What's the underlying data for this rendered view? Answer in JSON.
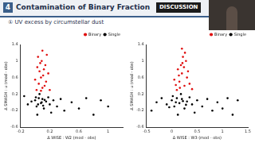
{
  "slide": {
    "number": "4",
    "title": "Contamination of Binary Fraction",
    "section": "DISCUSSION",
    "subtitle": "① UV excess by circumstellar dust"
  },
  "chart_data": [
    {
      "type": "scatter",
      "x_label": "Δ WISE : W2 (mod - obs)",
      "y_label": "Δ SMASH : u (mod - obs)",
      "xlim": [
        -0.2,
        1.2
      ],
      "xticks": [
        -0.2,
        0.2,
        0.6,
        1.0
      ],
      "ylim": [
        -0.6,
        1.4
      ],
      "yticks": [
        -0.6,
        -0.2,
        0.2,
        0.6,
        1.0,
        1.4
      ],
      "grid": false,
      "legend": "upper right",
      "marker": "circle",
      "series": [
        {
          "name": "Binary",
          "color": "#e01010",
          "values": [
            [
              0.02,
              0.3
            ],
            [
              0.05,
              0.45
            ],
            [
              0.08,
              0.6
            ],
            [
              0.1,
              0.35
            ],
            [
              0.12,
              0.8
            ],
            [
              0.07,
              0.95
            ],
            [
              0.15,
              0.5
            ],
            [
              0.04,
              1.1
            ],
            [
              0.1,
              1.25
            ],
            [
              0.18,
              0.7
            ],
            [
              0.0,
              0.55
            ],
            [
              0.13,
              0.4
            ],
            [
              0.06,
              0.75
            ],
            [
              0.2,
              0.3
            ],
            [
              0.09,
              1.0
            ],
            [
              0.11,
              0.65
            ],
            [
              0.14,
              0.9
            ],
            [
              0.03,
              0.85
            ],
            [
              0.16,
              1.15
            ],
            [
              0.08,
              0.28
            ]
          ]
        },
        {
          "name": "Single",
          "color": "#000000",
          "values": [
            [
              -0.1,
              -0.05
            ],
            [
              -0.05,
              0.02
            ],
            [
              0.0,
              0.05
            ],
            [
              0.02,
              -0.1
            ],
            [
              0.05,
              0.1
            ],
            [
              0.08,
              -0.02
            ],
            [
              0.1,
              0.08
            ],
            [
              0.12,
              -0.15
            ],
            [
              0.15,
              0.02
            ],
            [
              0.18,
              0.12
            ],
            [
              0.2,
              -0.05
            ],
            [
              0.25,
              0.05
            ],
            [
              0.3,
              -0.1
            ],
            [
              0.35,
              0.08
            ],
            [
              0.4,
              -0.2
            ],
            [
              0.5,
              0.0
            ],
            [
              0.6,
              -0.15
            ],
            [
              0.7,
              0.1
            ],
            [
              0.8,
              -0.3
            ],
            [
              0.9,
              0.05
            ],
            [
              1.0,
              -0.1
            ],
            [
              0.03,
              -0.3
            ],
            [
              -0.15,
              0.15
            ],
            [
              0.06,
              0.2
            ],
            [
              0.22,
              -0.25
            ],
            [
              0.04,
              -0.05
            ],
            [
              0.09,
              0.0
            ],
            [
              0.13,
              0.06
            ],
            [
              0.01,
              0.12
            ],
            [
              0.11,
              -0.08
            ]
          ]
        }
      ]
    },
    {
      "type": "scatter",
      "x_label": "Δ WISE : W3 (mod - obs)",
      "y_label": "Δ SMASH : u (mod - obs)",
      "xlim": [
        -0.5,
        1.5
      ],
      "xticks": [
        -0.5,
        0.0,
        0.5,
        1.0,
        1.5
      ],
      "ylim": [
        -0.6,
        1.4
      ],
      "yticks": [
        -0.6,
        -0.2,
        0.2,
        0.6,
        1.0,
        1.4
      ],
      "grid": false,
      "legend": "upper right",
      "marker": "circle",
      "series": [
        {
          "name": "Binary",
          "color": "#e01010",
          "values": [
            [
              0.1,
              0.3
            ],
            [
              0.15,
              0.5
            ],
            [
              0.2,
              0.7
            ],
            [
              0.25,
              0.4
            ],
            [
              0.18,
              0.9
            ],
            [
              0.22,
              1.1
            ],
            [
              0.3,
              0.6
            ],
            [
              0.12,
              0.8
            ],
            [
              0.28,
              1.0
            ],
            [
              0.2,
              1.3
            ],
            [
              0.35,
              0.45
            ],
            [
              0.05,
              0.55
            ],
            [
              0.24,
              0.85
            ],
            [
              0.16,
              0.35
            ],
            [
              0.32,
              0.75
            ],
            [
              0.26,
              1.2
            ],
            [
              0.14,
              0.65
            ],
            [
              0.4,
              0.32
            ],
            [
              0.08,
              0.42
            ],
            [
              0.21,
              0.95
            ]
          ]
        },
        {
          "name": "Single",
          "color": "#000000",
          "values": [
            [
              -0.3,
              0.0
            ],
            [
              -0.2,
              0.1
            ],
            [
              -0.1,
              -0.05
            ],
            [
              0.0,
              0.05
            ],
            [
              0.05,
              -0.1
            ],
            [
              0.1,
              0.1
            ],
            [
              0.15,
              -0.02
            ],
            [
              0.2,
              0.08
            ],
            [
              0.25,
              -0.15
            ],
            [
              0.3,
              0.02
            ],
            [
              0.35,
              0.12
            ],
            [
              0.4,
              -0.05
            ],
            [
              0.5,
              0.05
            ],
            [
              0.6,
              -0.1
            ],
            [
              0.7,
              0.08
            ],
            [
              0.8,
              -0.2
            ],
            [
              0.9,
              0.0
            ],
            [
              1.0,
              -0.15
            ],
            [
              1.1,
              0.1
            ],
            [
              1.2,
              -0.3
            ],
            [
              1.3,
              0.05
            ],
            [
              -0.4,
              -0.2
            ],
            [
              0.12,
              -0.3
            ],
            [
              0.18,
              0.2
            ],
            [
              0.45,
              -0.25
            ],
            [
              0.08,
              0.0
            ],
            [
              0.22,
              0.03
            ],
            [
              0.28,
              -0.06
            ],
            [
              0.02,
              0.15
            ],
            [
              -0.05,
              -0.12
            ]
          ]
        }
      ]
    }
  ]
}
